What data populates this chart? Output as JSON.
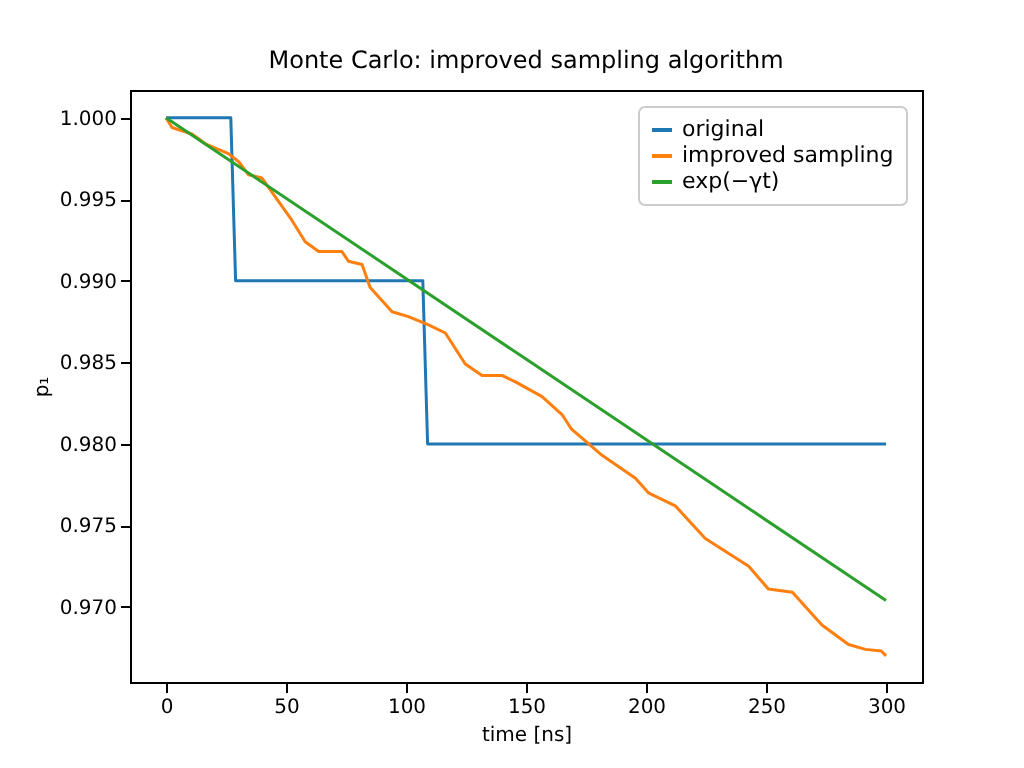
{
  "chart_data": {
    "type": "line",
    "title": "Monte Carlo: improved sampling algorithm",
    "xlabel": "time [ns]",
    "ylabel": "p₁",
    "series": [
      {
        "name": "original",
        "color": "#1f77b4",
        "x": [
          0,
          27,
          29,
          107,
          109,
          300
        ],
        "values": [
          1.0,
          1.0,
          0.99,
          0.99,
          0.98,
          0.98
        ]
      },
      {
        "name": "improved sampling",
        "color": "#ff7f0e",
        "x": [
          0,
          2.5,
          10.8,
          16.4,
          26,
          30.3,
          34.4,
          40,
          52.5,
          58,
          63.6,
          73.3,
          76,
          81.7,
          85,
          94.2,
          101,
          109.4,
          116.4,
          124.7,
          131.7,
          140,
          145.6,
          156.7,
          165,
          169,
          181.7,
          195.6,
          201,
          212.2,
          224.7,
          242.8,
          251,
          261,
          273.3,
          284.4,
          291.4,
          298,
          300
        ],
        "values": [
          1.0,
          0.9994,
          0.999,
          0.9984,
          0.9978,
          0.9973,
          0.9965,
          0.9963,
          0.9937,
          0.9924,
          0.9918,
          0.9918,
          0.9912,
          0.991,
          0.9896,
          0.9881,
          0.9878,
          0.9873,
          0.9868,
          0.9849,
          0.9842,
          0.9842,
          0.9838,
          0.9829,
          0.9818,
          0.9809,
          0.9793,
          0.9779,
          0.977,
          0.9762,
          0.9742,
          0.9725,
          0.9711,
          0.9709,
          0.9689,
          0.9677,
          0.9674,
          0.9673,
          0.967
        ]
      },
      {
        "name": "exp(−γt)",
        "color": "#2ca02c",
        "x": [
          0,
          150,
          300
        ],
        "values": [
          1.0,
          0.9852,
          0.9704
        ]
      }
    ],
    "xlim": [
      -15,
      315
    ],
    "ylim": [
      0.9654,
      1.0017
    ],
    "xticks": [
      0,
      50,
      100,
      150,
      200,
      250,
      300
    ],
    "yticks": [
      {
        "value": 0.97,
        "label": "0.970"
      },
      {
        "value": 0.975,
        "label": "0.975"
      },
      {
        "value": 0.98,
        "label": "0.980"
      },
      {
        "value": 0.985,
        "label": "0.985"
      },
      {
        "value": 0.99,
        "label": "0.990"
      },
      {
        "value": 0.995,
        "label": "0.995"
      },
      {
        "value": 1.0,
        "label": "1.000"
      }
    ],
    "legend": "top right",
    "grid": false
  }
}
